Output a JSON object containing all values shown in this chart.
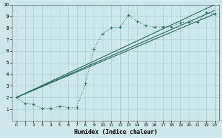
{
  "title": "",
  "xlabel": "Humidex (Indice chaleur)",
  "ylabel": "",
  "xlim": [
    -0.5,
    23.5
  ],
  "ylim": [
    0,
    10
  ],
  "xticks": [
    0,
    1,
    2,
    3,
    4,
    5,
    6,
    7,
    8,
    9,
    10,
    11,
    12,
    13,
    14,
    15,
    16,
    17,
    18,
    19,
    20,
    21,
    22,
    23
  ],
  "yticks": [
    1,
    2,
    3,
    4,
    5,
    6,
    7,
    8,
    9,
    10
  ],
  "bg_color": "#cce8e8",
  "line_color": "#2d6b60",
  "grid_color": "#aacccc",
  "jagged_x": [
    0,
    1,
    2,
    3,
    4,
    5,
    6,
    7,
    8,
    9,
    10,
    11,
    12,
    13,
    14,
    15,
    16,
    17,
    18,
    19,
    20,
    21,
    22,
    23
  ],
  "jagged_y": [
    2.0,
    1.5,
    1.4,
    1.05,
    1.05,
    1.25,
    1.15,
    1.1,
    3.2,
    6.2,
    7.5,
    8.0,
    8.05,
    9.1,
    8.55,
    8.2,
    8.05,
    8.1,
    8.1,
    8.45,
    8.5,
    8.5,
    9.3,
    9.2
  ],
  "smooth_lines": [
    {
      "x": [
        0,
        23
      ],
      "y": [
        2.0,
        9.2
      ]
    },
    {
      "x": [
        0,
        23
      ],
      "y": [
        2.0,
        9.5
      ]
    },
    {
      "x": [
        0,
        23
      ],
      "y": [
        2.0,
        10.0
      ]
    }
  ]
}
